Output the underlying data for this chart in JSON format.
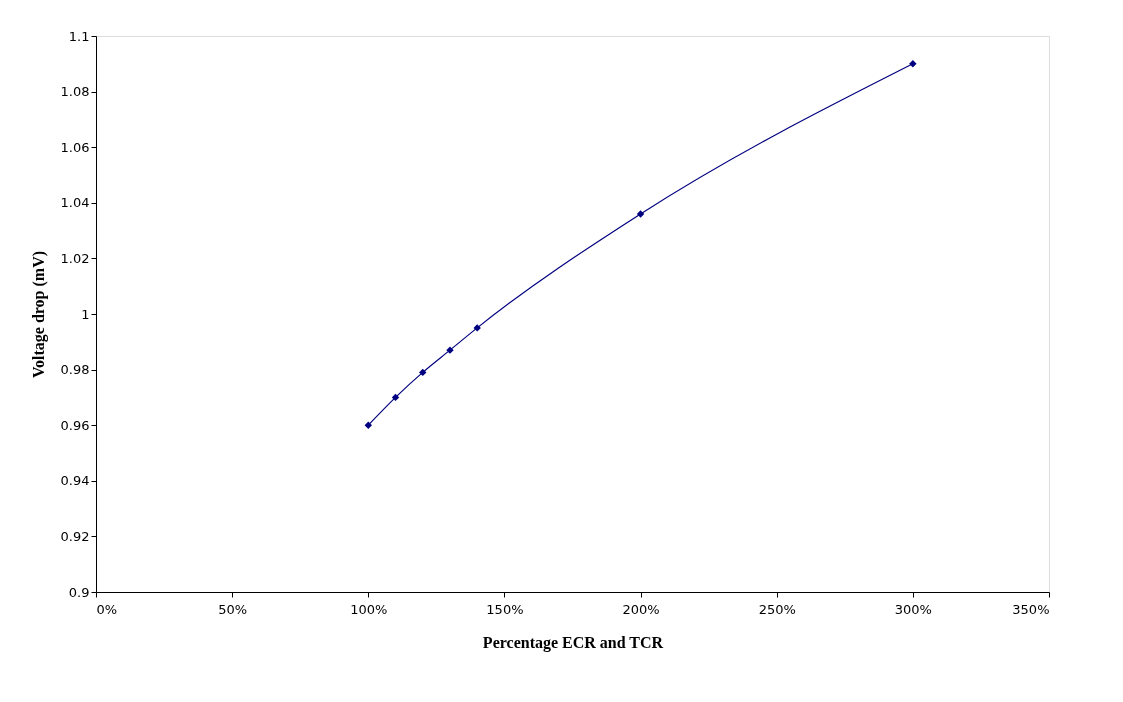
{
  "chart_data": {
    "type": "line",
    "xlabel": "Percentage ECR and TCR",
    "ylabel": "Voltage drop (mV)",
    "x": [
      100,
      110,
      120,
      130,
      140,
      200,
      300
    ],
    "series": [
      {
        "color": "#000080",
        "values": [
          0.96,
          0.97,
          0.979,
          0.987,
          0.995,
          1.036,
          1.09
        ]
      }
    ],
    "xlim": [
      0,
      350
    ],
    "xticks": [
      {
        "value": 0,
        "label": "0%"
      },
      {
        "value": 50,
        "label": "50%"
      },
      {
        "value": 100,
        "label": "100%"
      },
      {
        "value": 150,
        "label": "150%"
      },
      {
        "value": 200,
        "label": "200%"
      },
      {
        "value": 250,
        "label": "250%"
      },
      {
        "value": 300,
        "label": "300%"
      },
      {
        "value": 350,
        "label": "350%"
      }
    ],
    "ylim": [
      0.9,
      1.1
    ],
    "yticks": [
      0.9,
      0.92,
      0.94,
      0.96,
      0.98,
      1,
      1.02,
      1.04,
      1.06,
      1.08,
      {
        "value": 1.1,
        "label": "1.1"
      }
    ],
    "marker": "diamond",
    "line_style": "solid",
    "grid": false
  }
}
